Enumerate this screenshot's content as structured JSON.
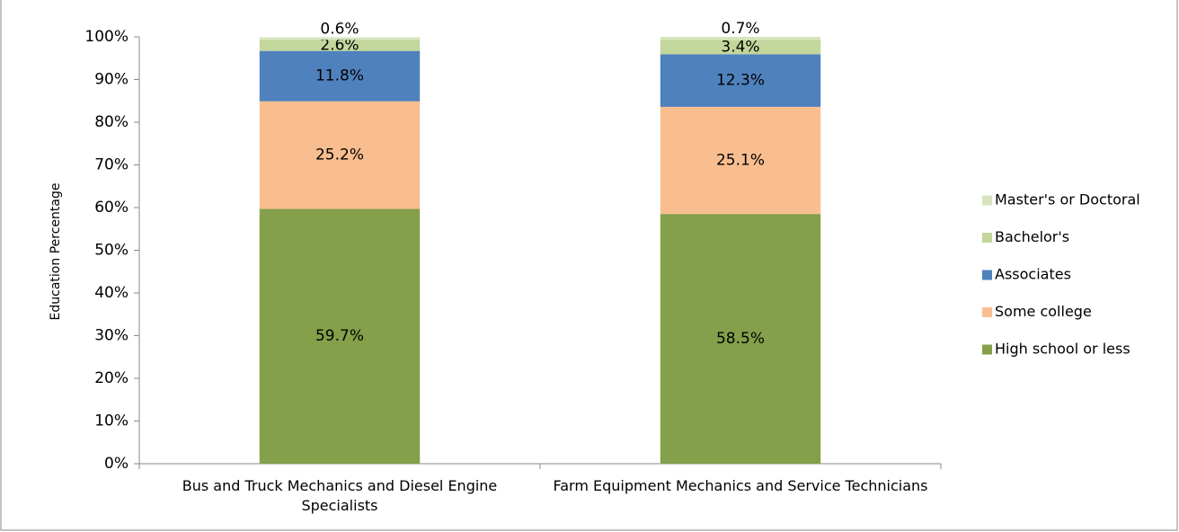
{
  "chart_data": {
    "type": "stacked_bar",
    "categories": [
      "Bus and Truck Mechanics and Diesel Engine Specialists",
      "Farm Equipment Mechanics and Service Technicians"
    ],
    "y_label": "Education Percentage",
    "series": [
      {
        "name": "High school or less",
        "color": "#84a04a",
        "values": [
          59.7,
          58.5
        ],
        "value_labels": [
          "59.7%",
          "58.5%"
        ]
      },
      {
        "name": "Some college",
        "color": "#f9be8f",
        "values": [
          25.2,
          25.1
        ],
        "value_labels": [
          "25.2%",
          "25.1%"
        ]
      },
      {
        "name": "Associates",
        "color": "#4f81bd",
        "values": [
          11.8,
          12.3
        ],
        "value_labels": [
          "11.8%",
          "12.3%"
        ]
      },
      {
        "name": "Bachelor's",
        "color": "#c3d69b",
        "values": [
          2.6,
          3.4
        ],
        "value_labels": [
          "2.6%",
          "3.4%"
        ]
      },
      {
        "name": "Master's or Doctoral",
        "color": "#d7e4bd",
        "values": [
          0.6,
          0.7
        ],
        "value_labels": [
          "0.6%",
          "0.7%"
        ]
      }
    ],
    "ylim": [
      0,
      100
    ],
    "yticks": [
      {
        "value": 0,
        "label": "0%"
      },
      {
        "value": 10,
        "label": "10%"
      },
      {
        "value": 20,
        "label": "20%"
      },
      {
        "value": 30,
        "label": "30%"
      },
      {
        "value": 40,
        "label": "40%"
      },
      {
        "value": 50,
        "label": "50%"
      },
      {
        "value": 60,
        "label": "60%"
      },
      {
        "value": 70,
        "label": "70%"
      },
      {
        "value": 80,
        "label": "80%"
      },
      {
        "value": 90,
        "label": "90%"
      },
      {
        "value": 100,
        "label": "100%"
      }
    ],
    "legend": "right"
  }
}
